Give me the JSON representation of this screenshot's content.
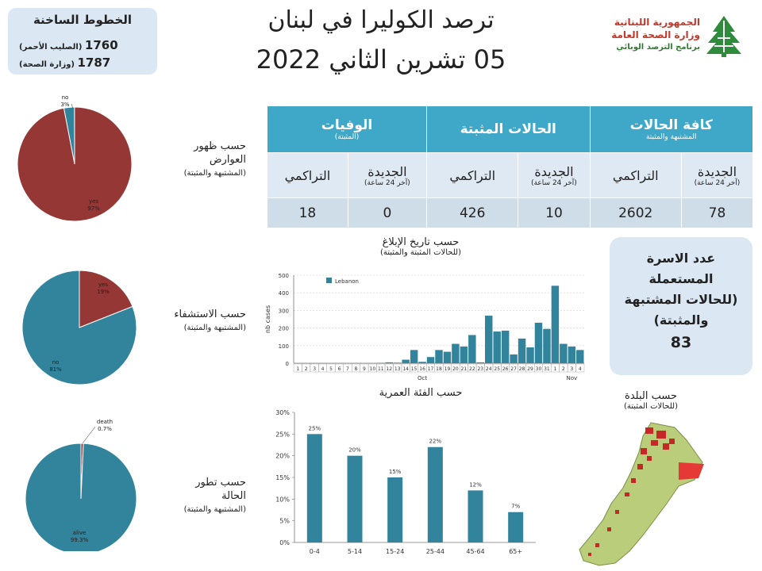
{
  "hotline": {
    "title": "الخطوط الساخنة",
    "rows": [
      {
        "number": "1760",
        "label": "(الصليب الأحمر)"
      },
      {
        "number": "1787",
        "label": "(وزارة الصحة)"
      }
    ]
  },
  "header": {
    "title_line1": "ترصد الكوليرا في لبنان",
    "title_line2": "05 تشرين الثاني 2022"
  },
  "logo": {
    "line1": "الجمهورية اللبنانية",
    "line2": "وزارة الصحة العامة",
    "line3": "برنامج الترصد الوبائي"
  },
  "table": {
    "groups": [
      {
        "title": "كافة الحالات",
        "subtitle": "المشتبهة والمثبتة"
      },
      {
        "title": "الحالات المثبتة",
        "subtitle": ""
      },
      {
        "title": "الوفيات",
        "subtitle": "(المثبتة)"
      }
    ],
    "sub_new": "الجديدة",
    "sub_new_note": "(آخر 24 ساعة)",
    "sub_cum": "التراكمي",
    "values": [
      "78",
      "2602",
      "10",
      "426",
      "0",
      "18"
    ]
  },
  "labels": {
    "symptoms": {
      "line1": "حسب ظهور",
      "line2": "العوارض",
      "note": "(المشتبهة والمثبتة)"
    },
    "hospital": {
      "line1": "حسب الاستشفاء",
      "note": "(المشتبهة والمثبتة)"
    },
    "outcome": {
      "line1": "حسب تطور",
      "line2": "الحالة",
      "note": "(المشتبهة والمثبتة)"
    },
    "report_date": {
      "line1": "حسب تاريخ الإبلاغ",
      "note": "(للحالات المثبتة والمثبتة)"
    },
    "age": {
      "line1": "حسب الفئة العمرية"
    },
    "town": {
      "line1": "حسب البلدة",
      "note": "(للحالات المثبتة)"
    }
  },
  "family": {
    "line1": "عدد الاسرة",
    "line2": "المستعملة",
    "line3": "(للحالات المشتبهة",
    "line4": "والمثبتة)",
    "value": "83"
  },
  "colors": {
    "teal": "#31849b",
    "red": "#953735",
    "header_blue": "#3fa8c9"
  },
  "chart_data": [
    {
      "type": "pie",
      "labels": [
        "no",
        "yes"
      ],
      "values": [
        3,
        97
      ],
      "slice_labels": [
        {
          "name": "no",
          "value": "3%"
        },
        {
          "name": "yes",
          "value": "97%"
        }
      ],
      "colors": [
        "#31849b",
        "#953735"
      ]
    },
    {
      "type": "pie",
      "labels": [
        "yes",
        "no"
      ],
      "values": [
        19,
        81
      ],
      "slice_labels": [
        {
          "name": "yes",
          "value": "19%"
        },
        {
          "name": "no",
          "value": "81%"
        }
      ],
      "colors": [
        "#953735",
        "#31849b"
      ]
    },
    {
      "type": "pie",
      "labels": [
        "death",
        "alive"
      ],
      "values": [
        0.7,
        99.3
      ],
      "slice_labels": [
        {
          "name": "death",
          "value": "0.7%"
        },
        {
          "name": "alive",
          "value": "99.3%"
        }
      ],
      "colors": [
        "#953735",
        "#31849b"
      ]
    },
    {
      "type": "bar",
      "ylabel": "nb cases",
      "legend": "Lebanon",
      "legend_position": "top-left",
      "ylim": [
        0,
        500
      ],
      "yticks": [
        0,
        100,
        200,
        300,
        400,
        500
      ],
      "categories": [
        "1",
        "2",
        "3",
        "4",
        "5",
        "6",
        "7",
        "8",
        "9",
        "10",
        "11",
        "12",
        "13",
        "14",
        "15",
        "16",
        "17",
        "18",
        "19",
        "20",
        "21",
        "22",
        "23",
        "24",
        "25",
        "26",
        "27",
        "28",
        "29",
        "30",
        "31",
        "1",
        "2",
        "3",
        "4"
      ],
      "month_labels": [
        {
          "label": "Oct",
          "index": 15
        },
        {
          "label": "Nov",
          "index": 33
        }
      ],
      "values": [
        0,
        0,
        0,
        0,
        0,
        0,
        0,
        0,
        0,
        0,
        2,
        5,
        3,
        20,
        75,
        8,
        35,
        75,
        65,
        110,
        95,
        160,
        5,
        270,
        180,
        185,
        50,
        140,
        90,
        230,
        195,
        440,
        110,
        95,
        75
      ],
      "grid": true
    },
    {
      "type": "bar",
      "categories": [
        "0-4",
        "5-14",
        "15-24",
        "25-44",
        "45-64",
        "65+"
      ],
      "values": [
        25,
        20,
        15,
        22,
        12,
        7
      ],
      "data_labels": [
        "25%",
        "20%",
        "15%",
        "22%",
        "12%",
        "7%"
      ],
      "ylim": [
        0,
        30
      ],
      "yticks": [
        "0%",
        "5%",
        "10%",
        "15%",
        "20%",
        "25%",
        "30%"
      ],
      "grid": false
    }
  ]
}
